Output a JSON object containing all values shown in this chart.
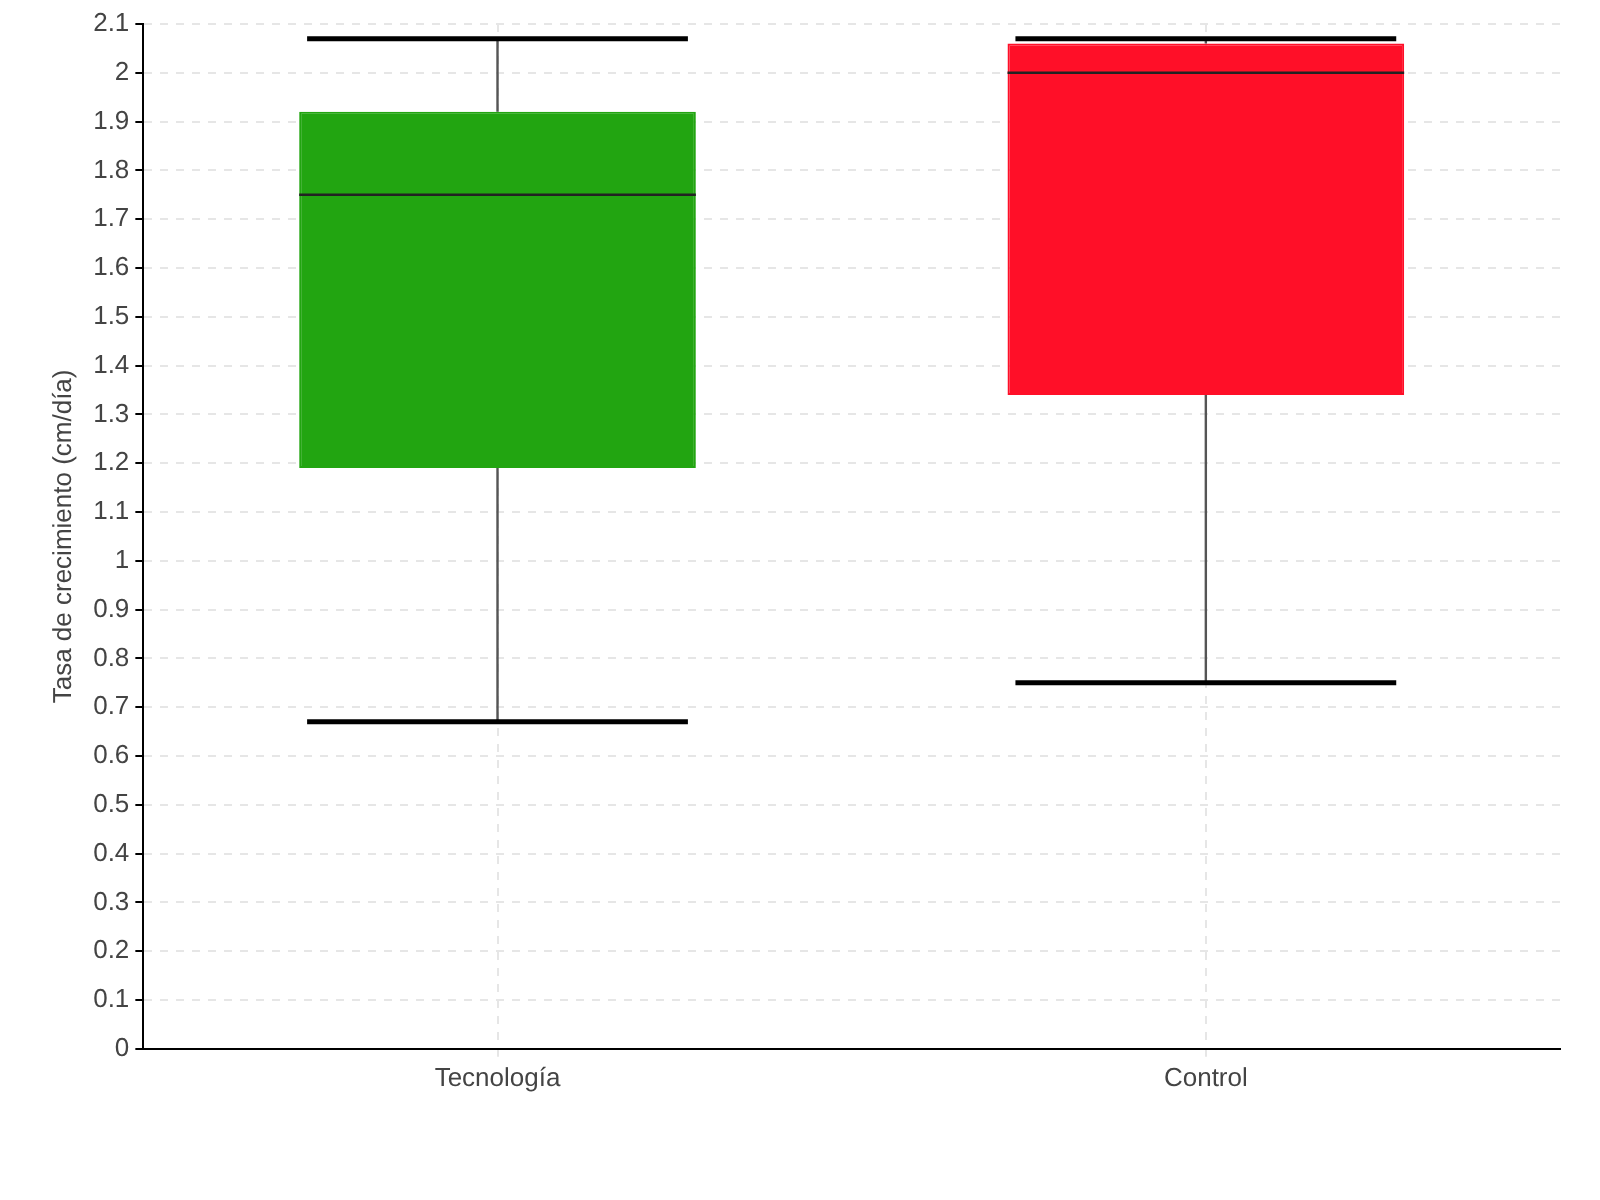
{
  "chart_data": {
    "type": "box",
    "ylabel": "Tasa de crecimiento (cm/día)",
    "categories": [
      "Tecnología",
      "Control"
    ],
    "colors": [
      "#22a511",
      "#ff0f28"
    ],
    "boxes": [
      {
        "low": 0.67,
        "q1": 1.19,
        "median": 1.75,
        "q3": 1.92,
        "high": 2.07
      },
      {
        "low": 0.75,
        "q1": 1.34,
        "median": 2.0,
        "q3": 2.06,
        "high": 2.07
      }
    ],
    "ylim": [
      0,
      2.1
    ],
    "yticks": [
      0,
      0.1,
      0.2,
      0.3,
      0.4,
      0.5,
      0.6,
      0.7,
      0.8,
      0.9,
      1,
      1.1,
      1.2,
      1.3,
      1.4,
      1.5,
      1.6,
      1.7,
      1.8,
      1.9,
      2,
      2.1
    ],
    "grid": true
  }
}
